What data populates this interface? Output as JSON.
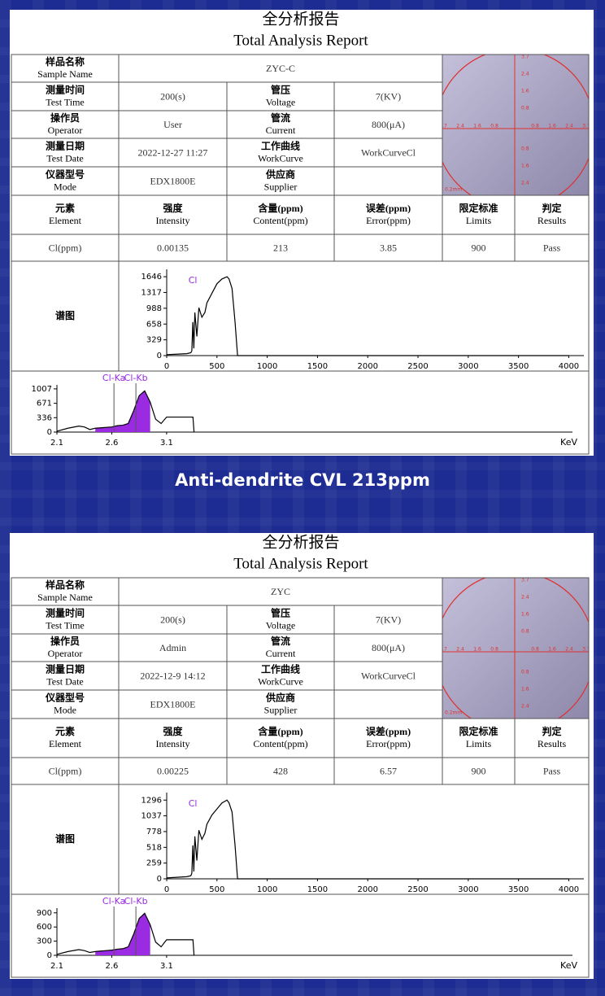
{
  "reports": [
    {
      "title_cn": "全分析报告",
      "title_en": "Total Analysis Report",
      "fields": [
        {
          "cn": "样品名称",
          "en": "Sample Name",
          "value": "ZYC-C"
        },
        {
          "cn": "测量时间",
          "en": "Test Time",
          "value": "200(s)"
        },
        {
          "cn": "管压",
          "en": "Voltage",
          "value": "7(KV)"
        },
        {
          "cn": "操作员",
          "en": "Operator",
          "value": "User"
        },
        {
          "cn": "管流",
          "en": "Current",
          "value": "800(μA)"
        },
        {
          "cn": "测量日期",
          "en": "Test Date",
          "value": "2022-12-27 11:27"
        },
        {
          "cn": "工作曲线",
          "en": "WorkCurve",
          "value": "WorkCurveCl"
        },
        {
          "cn": "仪器型号",
          "en": "Mode",
          "value": "EDX1800E"
        },
        {
          "cn": "供应商",
          "en": "Supplier"
        }
      ],
      "micrograph": {
        "scale_labels": [
          "3.7",
          "2.4",
          "1.6",
          "0.8"
        ],
        "scale_bar": "0.2mm"
      },
      "results": {
        "headers": [
          {
            "cn": "元素",
            "en": "Element"
          },
          {
            "cn": "强度",
            "en": "Intensity"
          },
          {
            "cn": "含量(ppm)",
            "en": "Content(ppm)"
          },
          {
            "cn": "误差(ppm)",
            "en": "Error(ppm)"
          },
          {
            "cn": "限定标准",
            "en": "Limits"
          },
          {
            "cn": "判定",
            "en": "Results"
          }
        ],
        "row": [
          "Cl(ppm)",
          0.00135,
          213,
          3.85,
          900,
          "Pass"
        ]
      },
      "spectrum_label": "谱图",
      "spectrum": {
        "type": "line",
        "color": "#000000",
        "peak_label": "Cl",
        "peak_x": 260,
        "x": [
          0,
          100,
          200,
          240,
          250,
          260,
          270,
          280,
          300,
          320,
          350,
          380,
          400,
          450,
          500,
          550,
          600,
          620,
          650,
          680,
          705,
          800,
          4000
        ],
        "values": [
          20,
          30,
          40,
          60,
          100,
          700,
          150,
          900,
          400,
          1000,
          800,
          900,
          1100,
          1300,
          1500,
          1600,
          1646,
          1600,
          1400,
          700,
          0,
          0,
          0
        ],
        "xlim": [
          0,
          4150
        ],
        "ylim": [
          0,
          1800
        ],
        "xticks": [
          0,
          500,
          1000,
          1500,
          2000,
          2500,
          3000,
          3500,
          4000
        ],
        "yticks": [
          0,
          329,
          658,
          988,
          1317,
          1646
        ]
      },
      "zoom": {
        "type": "line",
        "x_unit": "KeV",
        "x": [
          2.1,
          2.2,
          2.3,
          2.35,
          2.4,
          2.45,
          2.5,
          2.55,
          2.6,
          2.65,
          2.7,
          2.75,
          2.8,
          2.85,
          2.9,
          2.95,
          3.0,
          3.05,
          3.1,
          3.2,
          3.3,
          3.34,
          3.35
        ],
        "series": [
          {
            "color": "#9a2be2",
            "fill": true,
            "values": [
              null,
              null,
              null,
              null,
              null,
              90,
              100,
              110,
              120,
              150,
              160,
              200,
              500,
              850,
              960,
              700,
              null,
              null,
              null,
              null,
              null,
              null,
              null
            ]
          },
          {
            "color": "#000000",
            "values": [
              20,
              90,
              140,
              120,
              60,
              90,
              100,
              110,
              120,
              150,
              160,
              200,
              500,
              850,
              960,
              700,
              300,
              200,
              350,
              350,
              350,
              350,
              0
            ]
          }
        ],
        "peaks": [
          {
            "label": "Cl-Ka",
            "x": 2.62
          },
          {
            "label": "Cl-Kb",
            "x": 2.82
          }
        ],
        "xlim": [
          2.1,
          6.8
        ],
        "ylim": [
          0,
          1100
        ],
        "xticks": [
          2.1,
          2.6,
          3.1
        ],
        "yticks": [
          0,
          336,
          671,
          1007
        ]
      }
    },
    {
      "title_cn": "全分析报告",
      "title_en": "Total Analysis Report",
      "fields": [
        {
          "cn": "样品名称",
          "en": "Sample Name",
          "value": "ZYC"
        },
        {
          "cn": "测量时间",
          "en": "Test Time",
          "value": "200(s)"
        },
        {
          "cn": "管压",
          "en": "Voltage",
          "value": "7(KV)"
        },
        {
          "cn": "操作员",
          "en": "Operator",
          "value": "Admin"
        },
        {
          "cn": "管流",
          "en": "Current",
          "value": "800(μA)"
        },
        {
          "cn": "测量日期",
          "en": "Test Date",
          "value": "2022-12-9 14:12"
        },
        {
          "cn": "工作曲线",
          "en": "WorkCurve",
          "value": "WorkCurveCl"
        },
        {
          "cn": "仪器型号",
          "en": "Mode",
          "value": "EDX1800E"
        },
        {
          "cn": "供应商",
          "en": "Supplier"
        }
      ],
      "micrograph": {
        "scale_labels": [
          "3.7",
          "2.4",
          "1.6",
          "0.8"
        ],
        "scale_bar": "0.2mm"
      },
      "results": {
        "headers": [
          {
            "cn": "元素",
            "en": "Element"
          },
          {
            "cn": "强度",
            "en": "Intensity"
          },
          {
            "cn": "含量(ppm)",
            "en": "Content(ppm)"
          },
          {
            "cn": "误差(ppm)",
            "en": "Error(ppm)"
          },
          {
            "cn": "限定标准",
            "en": "Limits"
          },
          {
            "cn": "判定",
            "en": "Results"
          }
        ],
        "row": [
          "Cl(ppm)",
          0.00225,
          428,
          6.57,
          900,
          "Pass"
        ]
      },
      "spectrum_label": "谱图",
      "spectrum": {
        "type": "line",
        "color": "#000000",
        "peak_label": "Cl",
        "peak_x": 260,
        "x": [
          0,
          100,
          200,
          240,
          250,
          260,
          270,
          280,
          300,
          320,
          350,
          380,
          400,
          450,
          500,
          550,
          600,
          620,
          650,
          680,
          705,
          800,
          4000
        ],
        "values": [
          15,
          25,
          35,
          50,
          90,
          550,
          120,
          700,
          300,
          800,
          650,
          750,
          900,
          1050,
          1150,
          1250,
          1296,
          1250,
          1100,
          550,
          0,
          0,
          0
        ],
        "xlim": [
          0,
          4150
        ],
        "ylim": [
          0,
          1420
        ],
        "xticks": [
          0,
          500,
          1000,
          1500,
          2000,
          2500,
          3000,
          3500,
          4000
        ],
        "yticks": [
          0,
          259,
          518,
          778,
          1037,
          1296
        ]
      },
      "zoom": {
        "type": "line",
        "x_unit": "KeV",
        "x": [
          2.1,
          2.2,
          2.3,
          2.35,
          2.4,
          2.45,
          2.5,
          2.55,
          2.6,
          2.65,
          2.7,
          2.75,
          2.8,
          2.85,
          2.9,
          2.95,
          3.0,
          3.05,
          3.1,
          3.2,
          3.3,
          3.34,
          3.35
        ],
        "series": [
          {
            "color": "#9a2be2",
            "fill": true,
            "values": [
              null,
              null,
              null,
              null,
              null,
              80,
              90,
              100,
              110,
              130,
              140,
              180,
              450,
              780,
              890,
              650,
              null,
              null,
              null,
              null,
              null,
              null,
              null
            ]
          },
          {
            "color": "#000000",
            "values": [
              20,
              80,
              120,
              100,
              60,
              80,
              90,
              100,
              110,
              130,
              140,
              180,
              450,
              780,
              890,
              650,
              280,
              180,
              330,
              330,
              330,
              330,
              0
            ]
          }
        ],
        "peaks": [
          {
            "label": "Cl-Ka",
            "x": 2.62
          },
          {
            "label": "Cl-Kb",
            "x": 2.82
          }
        ],
        "xlim": [
          2.1,
          6.8
        ],
        "ylim": [
          0,
          1000
        ],
        "xticks": [
          2.1,
          2.6,
          3.1
        ],
        "yticks": [
          0,
          300,
          600,
          900
        ]
      }
    }
  ],
  "caption": "Anti-dendrite CVL 213ppm"
}
